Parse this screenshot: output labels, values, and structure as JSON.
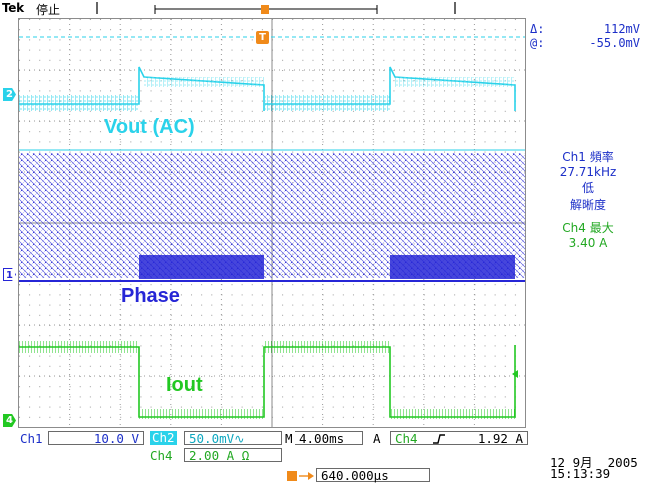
{
  "header": {
    "brand": "Tek",
    "status": "停止"
  },
  "cursor_readout": {
    "delta_label": "Δ:",
    "delta_value": "112mV",
    "at_label": "@:",
    "at_value": "-55.0mV"
  },
  "waveform_labels": {
    "vout": "Vout (AC)",
    "phase": "Phase",
    "iout": "Iout"
  },
  "channel_markers": {
    "ch2": "2",
    "ch1": "1",
    "ch4": "4",
    "trigger": "T"
  },
  "measurements": {
    "ch1_freq_label": "Ch1 頻率",
    "ch1_freq_value": "27.71kHz",
    "ch1_low": "低",
    "ch1_resolution": "解晰度",
    "ch4_max_label": "Ch4 最大",
    "ch4_max_value": "3.40 A"
  },
  "settings": {
    "ch1_label": "Ch1",
    "ch1_scale": "10.0 V",
    "ch2_label": "Ch2",
    "ch2_scale": "50.0mV",
    "ch2_coupling_icon": "∿",
    "ch4_label": "Ch4",
    "ch4_scale": "2.00 A",
    "ch4_impedance_icon": "Ω",
    "timebase": "M",
    "timebase_value": "4.00ms",
    "trigger_mode": "A",
    "trigger_channel": "Ch4",
    "trigger_slope_icon": "rising-edge",
    "trigger_level": "1.92 A",
    "trigger_position": "640.000µs",
    "date": "12 9月  2005",
    "time": "15:13:39"
  },
  "colors": {
    "ch1": "#2626d6",
    "ch2": "#2ad2ea",
    "ch4": "#22c822",
    "trigger": "#f08a1a",
    "readout": "#1c2fc8"
  }
}
